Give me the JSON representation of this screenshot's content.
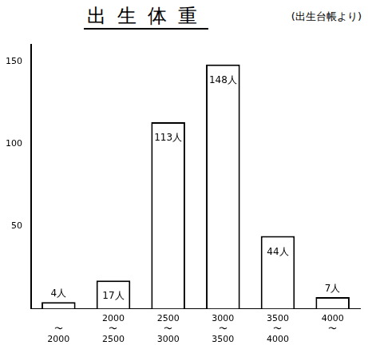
{
  "chart_data": {
    "type": "bar",
    "title": "出生体重",
    "subtitle": "(出生台帳より)",
    "categories": [
      "〜2000",
      "2000〜2500",
      "2500〜3000",
      "3000〜3500",
      "3500〜4000",
      "4000〜"
    ],
    "values": [
      4,
      17,
      113,
      148,
      44,
      7
    ],
    "value_labels": [
      "4人",
      "17人",
      "113人",
      "148人",
      "44人",
      "7人"
    ],
    "data_labels": true,
    "color": "#ffffff",
    "ylim": [
      0,
      160
    ],
    "yticks": [
      50,
      100,
      150
    ],
    "grid": false
  }
}
